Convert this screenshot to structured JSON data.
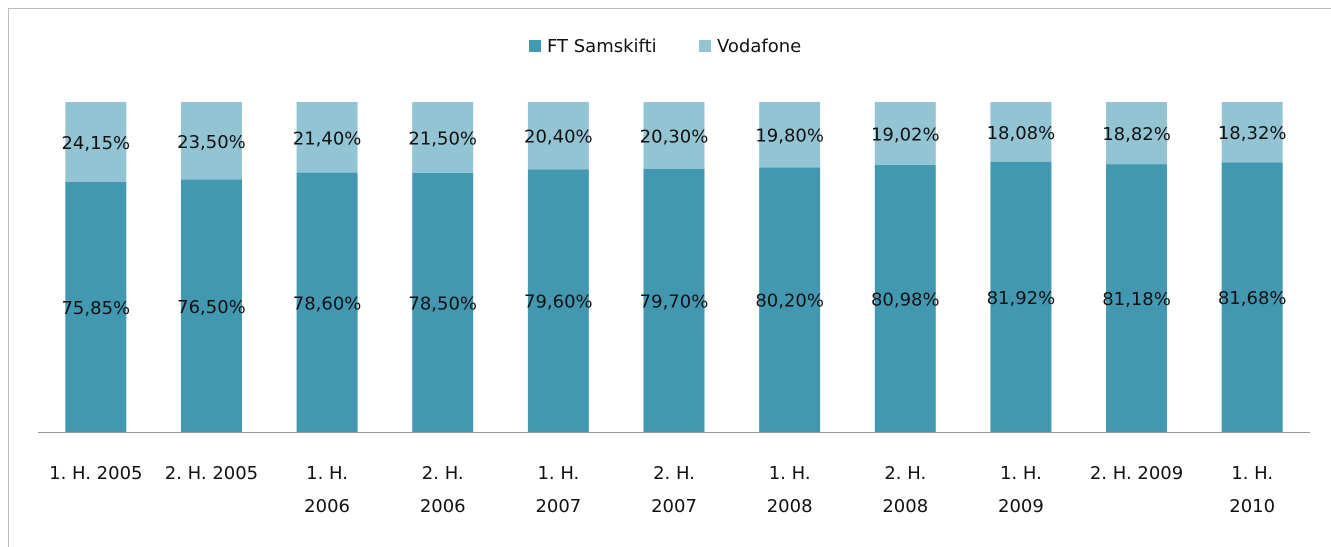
{
  "chart_data": {
    "type": "stacked_bar",
    "categories": [
      "1. H. 2005",
      "2. H. 2005",
      "1. H.\n2006",
      "2. H.\n2006",
      "1. H.\n2007",
      "2. H.\n2007",
      "1. H.\n2008",
      "2. H.\n2008",
      "1. H.\n2009",
      "2. H. 2009",
      "1. H.\n2010"
    ],
    "series": [
      {
        "name": "FT Samskifti",
        "color": "#4198b0",
        "values": [
          75.85,
          76.5,
          78.6,
          78.5,
          79.6,
          79.7,
          80.2,
          80.98,
          81.92,
          81.18,
          81.68
        ],
        "value_labels": [
          "75,85%",
          "76,50%",
          "78,60%",
          "78,50%",
          "79,60%",
          "79,70%",
          "80,20%",
          "80,98%",
          "81,92%",
          "81,18%",
          "81,68%"
        ]
      },
      {
        "name": "Vodafone",
        "color": "#93c4d4",
        "values": [
          24.15,
          23.5,
          21.4,
          21.5,
          20.4,
          20.3,
          19.8,
          19.02,
          18.08,
          18.82,
          18.32
        ],
        "value_labels": [
          "24,15%",
          "23,50%",
          "21,40%",
          "21,50%",
          "20,40%",
          "20,30%",
          "19,80%",
          "19,02%",
          "18,08%",
          "18,82%",
          "18,32%"
        ]
      }
    ],
    "ylim": [
      0,
      100
    ],
    "legend": "top"
  }
}
